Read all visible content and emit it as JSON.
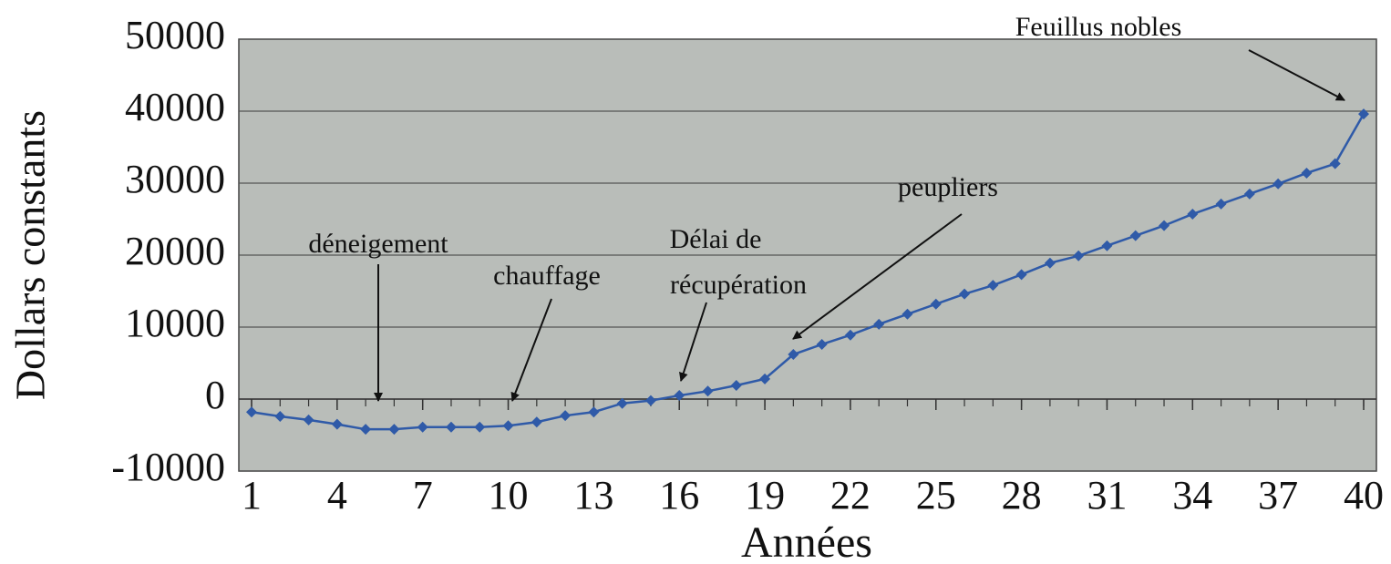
{
  "chart_data": {
    "type": "line",
    "x_label": "Années",
    "y_label": "Dollars constants",
    "annotations": [
      "déneigement",
      "chauffage",
      "Délai de",
      "récupération",
      "peupliers",
      "Feuillus nobles"
    ],
    "x": [
      1,
      2,
      3,
      4,
      5,
      6,
      7,
      8,
      9,
      10,
      11,
      12,
      13,
      14,
      15,
      16,
      17,
      18,
      19,
      20,
      21,
      22,
      23,
      24,
      25,
      26,
      27,
      28,
      29,
      30,
      31,
      32,
      33,
      34,
      35,
      36,
      37,
      38,
      39,
      40
    ],
    "series": [
      {
        "name": "Dollars constants",
        "color": "#2f5aa8",
        "values": [
          -1800,
          -2400,
          -2900,
          -3500,
          -4200,
          -4200,
          -3900,
          -3900,
          -3900,
          -3700,
          -3200,
          -2300,
          -1800,
          -600,
          -200,
          500,
          1100,
          1900,
          2800,
          6200,
          7600,
          8900,
          10400,
          11800,
          13200,
          14600,
          15800,
          17300,
          18900,
          19900,
          21300,
          22700,
          24100,
          25700,
          27100,
          28500,
          29900,
          31400,
          32700,
          39600
        ]
      }
    ],
    "xlim": [
      1,
      40
    ],
    "xticks": [
      1,
      4,
      7,
      10,
      13,
      16,
      19,
      22,
      25,
      28,
      31,
      34,
      37,
      40
    ],
    "ylim": [
      -10000,
      50000
    ],
    "yticks": [
      -10000,
      0,
      10000,
      20000,
      30000,
      40000,
      50000
    ],
    "grid": true
  }
}
